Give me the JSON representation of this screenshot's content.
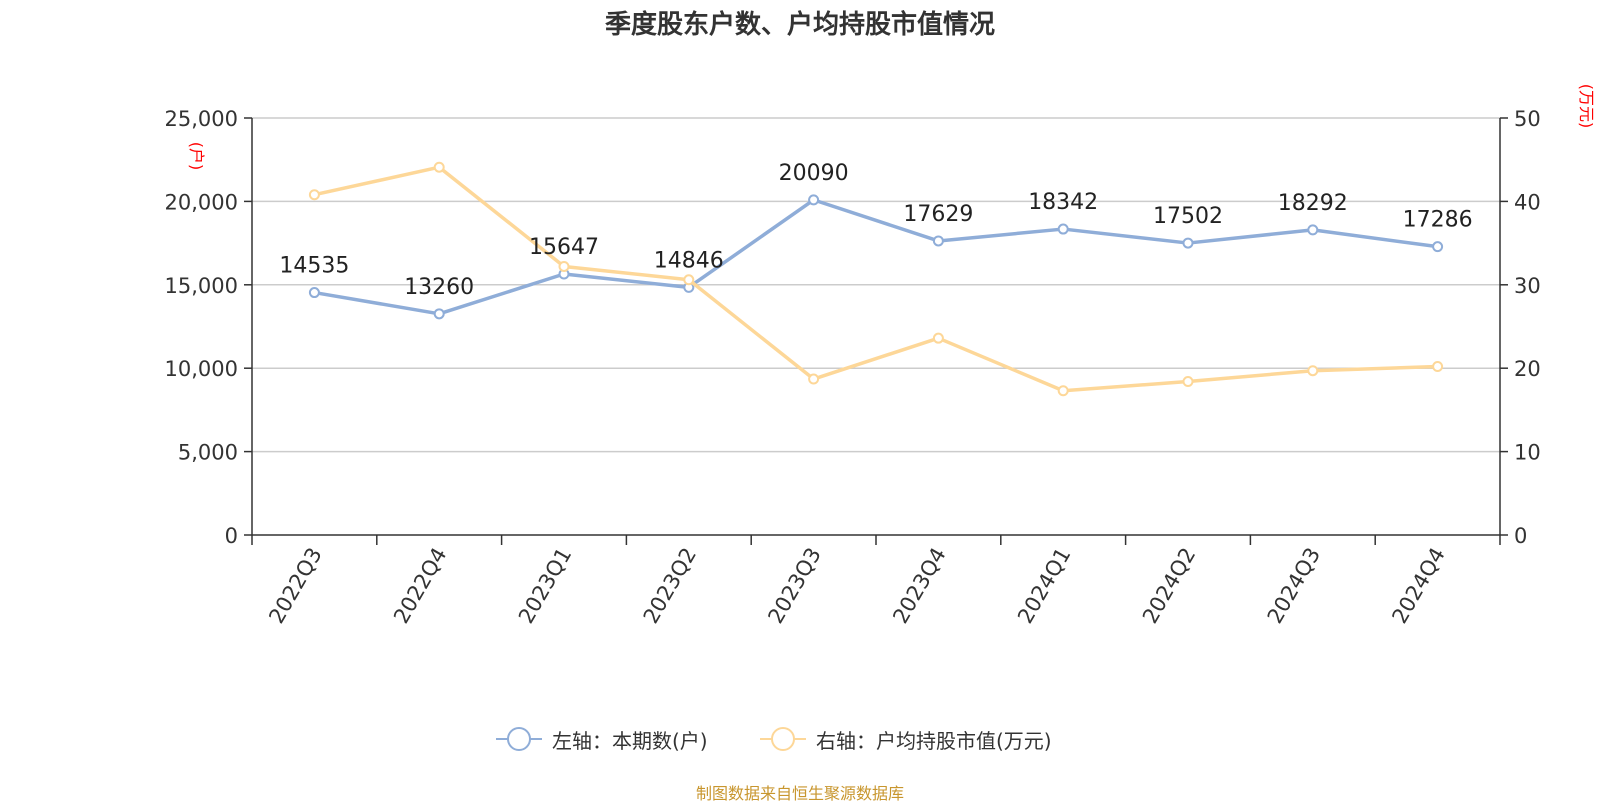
{
  "title": "季度股东户数、户均持股市值情况",
  "footer": "制图数据来自恒生聚源数据库",
  "colors": {
    "series1": "#8fadd8",
    "series2": "#fdd798",
    "unit": "#ff0000",
    "grid": "#cccccc",
    "axis": "#333333",
    "footer": "#c8962e"
  },
  "chart_data": {
    "type": "line",
    "title": "季度股东户数、户均持股市值情况",
    "categories": [
      "2022Q3",
      "2022Q4",
      "2023Q1",
      "2023Q2",
      "2023Q3",
      "2023Q4",
      "2024Q1",
      "2024Q2",
      "2024Q3",
      "2024Q4"
    ],
    "y_left": {
      "unit": "(户)",
      "min": 0,
      "max": 25000,
      "ticks": [
        0,
        5000,
        10000,
        15000,
        20000,
        25000
      ],
      "tick_labels": [
        "0",
        "5,000",
        "10,000",
        "15,000",
        "20,000",
        "25,000"
      ]
    },
    "y_right": {
      "unit": "(万元)",
      "min": 0,
      "max": 50,
      "ticks": [
        0,
        10,
        20,
        30,
        40,
        50
      ],
      "tick_labels": [
        "0",
        "10",
        "20",
        "30",
        "40",
        "50"
      ]
    },
    "grid": true,
    "legend_position": "bottom-center",
    "series": [
      {
        "name": "左轴：本期数(户)",
        "axis": "left",
        "values": [
          14535,
          13260,
          15647,
          14846,
          20090,
          17629,
          18342,
          17502,
          18292,
          17286
        ],
        "labels": [
          "14535",
          "13260",
          "15647",
          "14846",
          "20090",
          "17629",
          "18342",
          "17502",
          "18292",
          "17286"
        ]
      },
      {
        "name": "右轴：户均持股市值(万元)",
        "axis": "right",
        "values": [
          40.8,
          44.1,
          32.2,
          30.6,
          18.7,
          23.6,
          17.3,
          18.4,
          19.7,
          20.2
        ]
      }
    ]
  }
}
